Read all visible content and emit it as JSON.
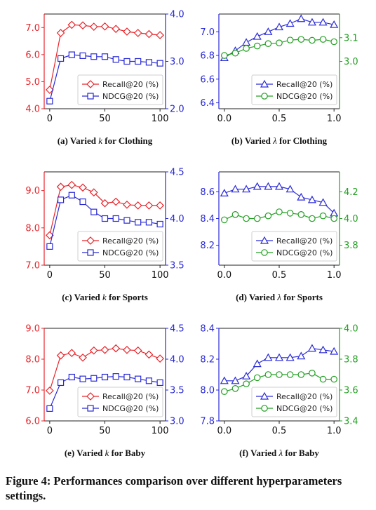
{
  "figure_caption": "Figure 4: Performances comparison over different hyperparameters settings.",
  "colors": {
    "recall": "#e8242a",
    "ndcg": "#2929d6",
    "recall_lambda": "#2a2ad9",
    "ndcg_lambda": "#23a023"
  },
  "chart_data": [
    {
      "id": "a",
      "type": "line",
      "caption_prefix": "(a) Varied ",
      "caption_var": "k",
      "caption_suffix": " for Clothing",
      "x": [
        0,
        10,
        20,
        30,
        40,
        50,
        60,
        70,
        80,
        90,
        100
      ],
      "xticks": [
        0,
        50,
        100
      ],
      "xlim": [
        -5,
        105
      ],
      "left_axis": {
        "ylim": [
          4.0,
          7.5
        ],
        "ticks": [
          4.0,
          5.0,
          6.0,
          7.0
        ],
        "labels": [
          "4.0",
          "5.0",
          "6.0",
          "7.0"
        ],
        "color": "#e8242a"
      },
      "right_axis": {
        "ylim": [
          2.0,
          4.0
        ],
        "ticks": [
          2.0,
          3.0,
          4.0
        ],
        "labels": [
          "2.0",
          "3.0",
          "4.0"
        ],
        "color": "#2929d6"
      },
      "legend_position": "lower-right",
      "series": [
        {
          "name": "Recall@20 (%)",
          "axis": "left",
          "marker": "diamond",
          "color": "#e8242a",
          "values": [
            4.7,
            6.8,
            7.1,
            7.08,
            7.03,
            7.04,
            6.95,
            6.85,
            6.8,
            6.76,
            6.72
          ]
        },
        {
          "name": "NDCG@20 (%)",
          "axis": "right",
          "marker": "square",
          "color": "#2929d6",
          "values": [
            2.16,
            3.06,
            3.14,
            3.12,
            3.1,
            3.1,
            3.04,
            3.0,
            3.0,
            2.98,
            2.96
          ]
        }
      ]
    },
    {
      "id": "b",
      "type": "line",
      "caption_prefix": "(b) Varied ",
      "caption_var": "λ",
      "caption_suffix": " for Clothing",
      "x": [
        0.0,
        0.1,
        0.2,
        0.3,
        0.4,
        0.5,
        0.6,
        0.7,
        0.8,
        0.9,
        1.0
      ],
      "xticks": [
        0.0,
        0.5,
        1.0
      ],
      "xlim": [
        -0.05,
        1.05
      ],
      "left_axis": {
        "ylim": [
          6.35,
          7.15
        ],
        "ticks": [
          6.4,
          6.6,
          6.8,
          7.0
        ],
        "labels": [
          "6.4",
          "6.6",
          "6.8",
          "7.0"
        ],
        "color": "#2a2ad9"
      },
      "right_axis": {
        "ylim": [
          2.8,
          3.2
        ],
        "ticks": [
          3.0,
          3.1
        ],
        "labels": [
          "3.0",
          "3.1"
        ],
        "color": "#23a023"
      },
      "legend_position": "lower-right",
      "series": [
        {
          "name": "Recall@20 (%)",
          "axis": "left",
          "marker": "triangle",
          "color": "#2a2ad9",
          "values": [
            6.78,
            6.84,
            6.91,
            6.96,
            7.0,
            7.04,
            7.07,
            7.11,
            7.08,
            7.08,
            7.06
          ]
        },
        {
          "name": "NDCG@20 (%)",
          "axis": "right",
          "marker": "circle",
          "color": "#23a023",
          "values": [
            3.025,
            3.035,
            3.055,
            3.065,
            3.075,
            3.078,
            3.09,
            3.093,
            3.089,
            3.093,
            3.083
          ]
        }
      ]
    },
    {
      "id": "c",
      "type": "line",
      "caption_prefix": "(c) Varied ",
      "caption_var": "k",
      "caption_suffix": " for Sports",
      "x": [
        0,
        10,
        20,
        30,
        40,
        50,
        60,
        70,
        80,
        90,
        100
      ],
      "xticks": [
        0,
        50,
        100
      ],
      "xlim": [
        -5,
        105
      ],
      "left_axis": {
        "ylim": [
          7.0,
          9.5
        ],
        "ticks": [
          7.0,
          8.0,
          9.0
        ],
        "labels": [
          "7.0",
          "8.0",
          "9.0"
        ],
        "color": "#e8242a"
      },
      "right_axis": {
        "ylim": [
          3.5,
          4.5
        ],
        "ticks": [
          3.5,
          4.0,
          4.5
        ],
        "labels": [
          "3.5",
          "4.0",
          "4.5"
        ],
        "color": "#2929d6"
      },
      "legend_position": "lower-right",
      "series": [
        {
          "name": "Recall@20 (%)",
          "axis": "left",
          "marker": "diamond",
          "color": "#e8242a",
          "values": [
            7.8,
            9.1,
            9.15,
            9.08,
            8.95,
            8.66,
            8.7,
            8.62,
            8.6,
            8.6,
            8.6
          ]
        },
        {
          "name": "NDCG@20 (%)",
          "axis": "right",
          "marker": "square",
          "color": "#2929d6",
          "values": [
            3.7,
            4.2,
            4.25,
            4.18,
            4.07,
            4.0,
            4.0,
            3.98,
            3.96,
            3.96,
            3.94
          ]
        }
      ]
    },
    {
      "id": "d",
      "type": "line",
      "caption_prefix": "(d) Varied ",
      "caption_var": "λ",
      "caption_suffix": " for Sports",
      "x": [
        0.0,
        0.1,
        0.2,
        0.3,
        0.4,
        0.5,
        0.6,
        0.7,
        0.8,
        0.9,
        1.0
      ],
      "xticks": [
        0.0,
        0.5,
        1.0
      ],
      "xlim": [
        -0.05,
        1.05
      ],
      "left_axis": {
        "ylim": [
          8.05,
          8.75
        ],
        "ticks": [
          8.2,
          8.4,
          8.6
        ],
        "labels": [
          "8.2",
          "8.4",
          "8.6"
        ],
        "color": "#2a2ad9"
      },
      "right_axis": {
        "ylim": [
          3.65,
          4.35
        ],
        "ticks": [
          3.8,
          4.0,
          4.2
        ],
        "labels": [
          "3.8",
          "4.0",
          "4.2"
        ],
        "color": "#23a023"
      },
      "legend_position": "lower-right",
      "series": [
        {
          "name": "Recall@20 (%)",
          "axis": "left",
          "marker": "triangle",
          "color": "#2a2ad9",
          "values": [
            8.59,
            8.62,
            8.62,
            8.64,
            8.64,
            8.64,
            8.62,
            8.56,
            8.54,
            8.52,
            8.44
          ]
        },
        {
          "name": "NDCG@20 (%)",
          "axis": "right",
          "marker": "circle",
          "color": "#23a023",
          "values": [
            3.99,
            4.03,
            4.0,
            4.0,
            4.02,
            4.05,
            4.04,
            4.03,
            4.0,
            4.02,
            4.0
          ]
        }
      ]
    },
    {
      "id": "e",
      "type": "line",
      "caption_prefix": "(e) Varied ",
      "caption_var": "k",
      "caption_suffix": " for Baby",
      "x": [
        0,
        10,
        20,
        30,
        40,
        50,
        60,
        70,
        80,
        90,
        100
      ],
      "xticks": [
        0,
        50,
        100
      ],
      "xlim": [
        -5,
        105
      ],
      "left_axis": {
        "ylim": [
          6.0,
          9.0
        ],
        "ticks": [
          6.0,
          7.0,
          8.0,
          9.0
        ],
        "labels": [
          "6.0",
          "7.0",
          "8.0",
          "9.0"
        ],
        "color": "#e8242a"
      },
      "right_axis": {
        "ylim": [
          3.0,
          4.5
        ],
        "ticks": [
          3.0,
          3.5,
          4.0,
          4.5
        ],
        "labels": [
          "3.0",
          "3.5",
          "4.0",
          "4.5"
        ],
        "color": "#2929d6"
      },
      "legend_position": "lower-right",
      "series": [
        {
          "name": "Recall@20 (%)",
          "axis": "left",
          "marker": "diamond",
          "color": "#e8242a",
          "values": [
            6.98,
            8.12,
            8.2,
            8.05,
            8.28,
            8.3,
            8.35,
            8.3,
            8.28,
            8.15,
            8.02
          ]
        },
        {
          "name": "NDCG@20 (%)",
          "axis": "right",
          "marker": "square",
          "color": "#2929d6",
          "values": [
            3.2,
            3.62,
            3.71,
            3.68,
            3.69,
            3.71,
            3.72,
            3.71,
            3.68,
            3.65,
            3.62
          ]
        }
      ]
    },
    {
      "id": "f",
      "type": "line",
      "caption_prefix": "(f) Varied ",
      "caption_var": "λ",
      "caption_suffix": " for Baby",
      "x": [
        0.0,
        0.1,
        0.2,
        0.3,
        0.4,
        0.5,
        0.6,
        0.7,
        0.8,
        0.9,
        1.0
      ],
      "xticks": [
        0.0,
        0.5,
        1.0
      ],
      "xlim": [
        -0.05,
        1.05
      ],
      "left_axis": {
        "ylim": [
          7.8,
          8.4
        ],
        "ticks": [
          7.8,
          8.0,
          8.2,
          8.4
        ],
        "labels": [
          "7.8",
          "8.0",
          "8.2",
          "8.4"
        ],
        "color": "#2a2ad9"
      },
      "right_axis": {
        "ylim": [
          3.4,
          4.0
        ],
        "ticks": [
          3.4,
          3.6,
          3.8,
          4.0
        ],
        "labels": [
          "3.4",
          "3.6",
          "3.8",
          "4.0"
        ],
        "color": "#23a023"
      },
      "legend_position": "lower-right",
      "series": [
        {
          "name": "Recall@20 (%)",
          "axis": "left",
          "marker": "triangle",
          "color": "#2a2ad9",
          "values": [
            8.06,
            8.06,
            8.09,
            8.17,
            8.21,
            8.21,
            8.21,
            8.22,
            8.27,
            8.26,
            8.25
          ]
        },
        {
          "name": "NDCG@20 (%)",
          "axis": "right",
          "marker": "circle",
          "color": "#23a023",
          "values": [
            3.59,
            3.61,
            3.64,
            3.68,
            3.7,
            3.7,
            3.7,
            3.7,
            3.71,
            3.67,
            3.67
          ]
        }
      ]
    }
  ]
}
